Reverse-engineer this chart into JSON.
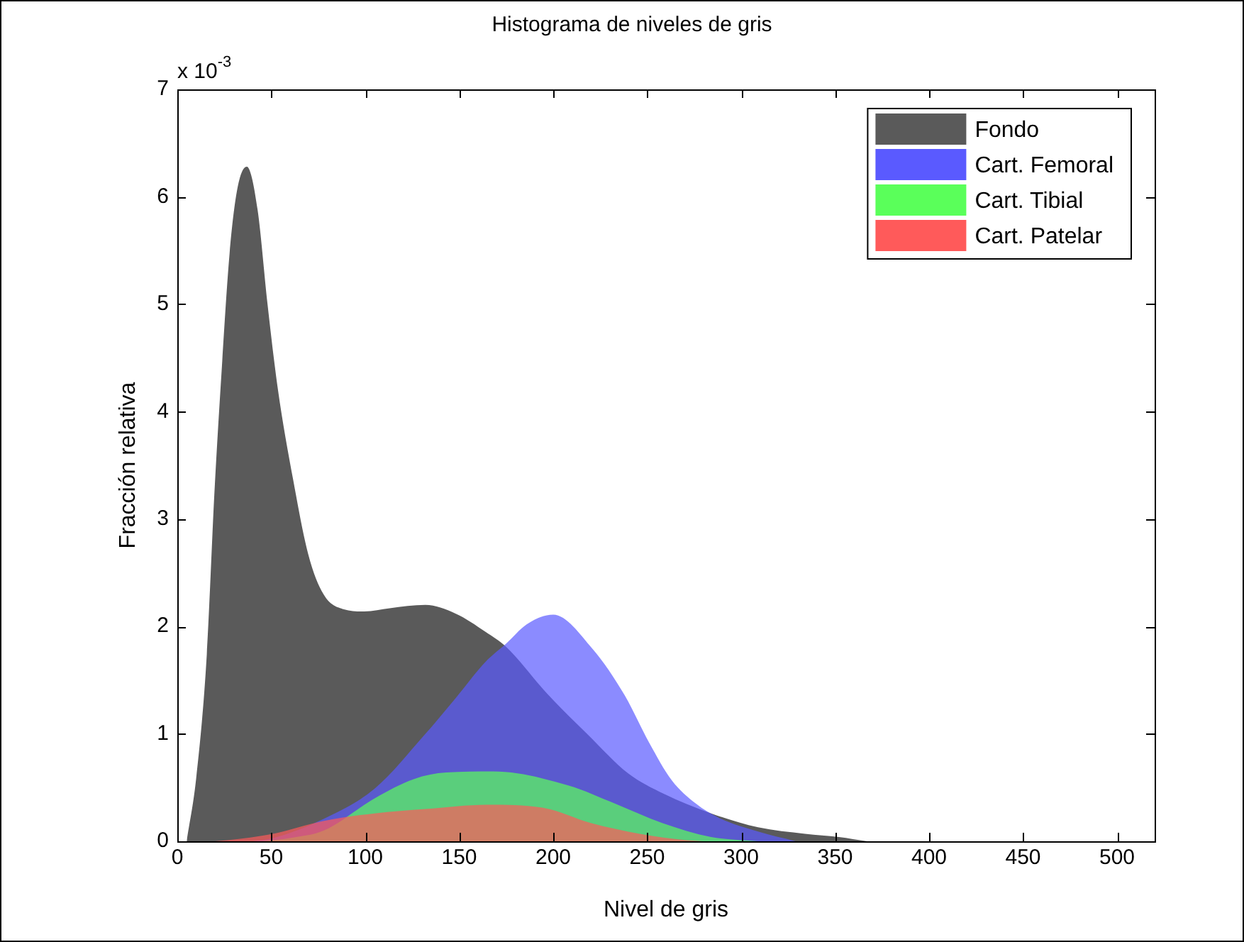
{
  "chart_data": {
    "type": "area",
    "title": "Histograma de niveles de gris",
    "xlabel": "Nivel de gris",
    "ylabel": "Fracción relativa",
    "annotations": [
      "x 10$^{-3}$"
    ],
    "xlim": [
      0,
      520
    ],
    "xticks": [
      0,
      50,
      100,
      150,
      200,
      250,
      300,
      350,
      400,
      450,
      500
    ],
    "ylim": [
      0,
      7
    ],
    "yticks": [
      0,
      1,
      2,
      3,
      4,
      5,
      6,
      7
    ],
    "grid": false,
    "legend": "top right",
    "series": [
      {
        "name": "Fondo",
        "color": "#5a5a5a",
        "x": [
          5,
          10,
          15.7,
          19.7,
          23.8,
          27.8,
          31.9,
          37,
          42.7,
          48,
          53.5,
          61.6,
          69.7,
          77.8,
          88.6,
          99.5,
          113,
          132,
          148,
          164,
          175,
          197,
          218,
          240,
          259,
          284,
          309,
          334,
          352,
          367
        ],
        "values": [
          0,
          0.58,
          1.74,
          3.23,
          4.44,
          5.47,
          6.07,
          6.28,
          5.88,
          5.0,
          4.21,
          3.37,
          2.67,
          2.3,
          2.16,
          2.14,
          2.17,
          2.2,
          2.12,
          1.95,
          1.81,
          1.37,
          1.0,
          0.63,
          0.44,
          0.26,
          0.13,
          0.07,
          0.04,
          0
        ]
      },
      {
        "name": "Cart. Femoral",
        "color": "#5a5aff",
        "x": [
          40,
          51,
          78,
          105,
          132,
          148,
          164,
          175,
          186,
          200,
          221,
          238,
          251,
          263,
          276,
          288,
          309,
          329
        ],
        "values": [
          0,
          0.03,
          0.21,
          0.49,
          1.0,
          1.33,
          1.67,
          1.84,
          2.02,
          2.11,
          1.79,
          1.36,
          0.92,
          0.57,
          0.35,
          0.22,
          0.09,
          0
        ]
      },
      {
        "name": "Cart. Tibial",
        "color": "#5aff5a",
        "x": [
          45,
          60,
          78,
          105,
          126,
          143,
          168,
          208,
          233,
          258,
          284,
          309
        ],
        "values": [
          0,
          0.03,
          0.1,
          0.4,
          0.58,
          0.64,
          0.65,
          0.52,
          0.35,
          0.17,
          0.04,
          0
        ]
      },
      {
        "name": "Cart. Patelar",
        "color": "#ff5a5a",
        "x": [
          20,
          26.5,
          51,
          78,
          105,
          132,
          165,
          195,
          220,
          246,
          271,
          280
        ],
        "values": [
          0,
          0.01,
          0.07,
          0.19,
          0.26,
          0.3,
          0.34,
          0.31,
          0.17,
          0.07,
          0.01,
          0
        ]
      }
    ]
  }
}
